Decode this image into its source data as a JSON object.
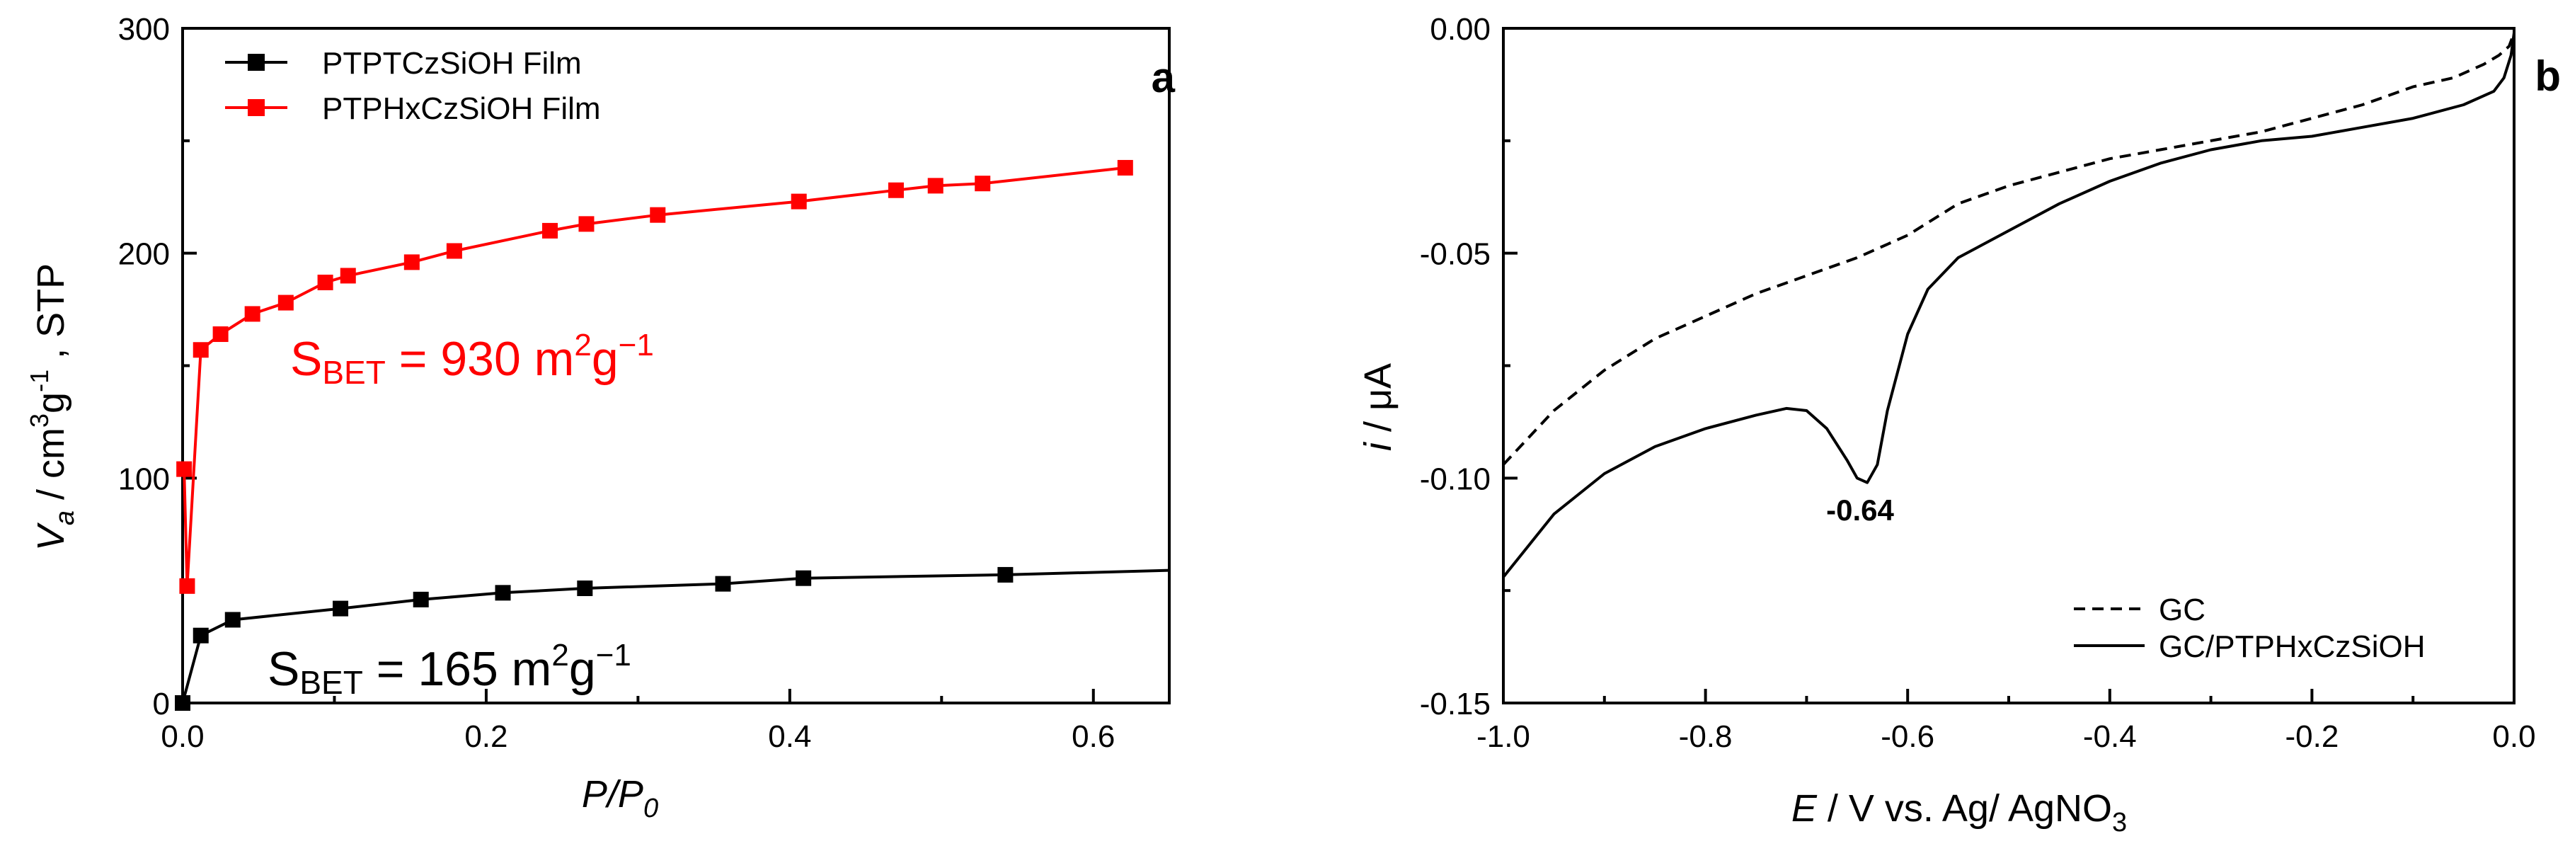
{
  "chart_data": [
    {
      "panel": "a",
      "type": "line",
      "xlabel_main": "P/P",
      "xlabel_sub": "0",
      "ylabel": {
        "main": "V",
        "sub": "a",
        "unit1": " / cm",
        "sup1": "3",
        "unit2": "g",
        "sup2": "-1",
        "unit3": " , STP"
      },
      "xlim": [
        0,
        0.65
      ],
      "ylim": [
        0,
        300
      ],
      "xticks": [
        0.0,
        0.2,
        0.4,
        0.6
      ],
      "xtick_labels": [
        "0.0",
        "0.2",
        "0.4",
        "0.6"
      ],
      "yticks": [
        0,
        100,
        200,
        300
      ],
      "ytick_labels": [
        "0",
        "100",
        "200",
        "300"
      ],
      "series": [
        {
          "name": "PTPTCzSiOH Film",
          "color": "#000000",
          "x": [
            0.0,
            0.012,
            0.033,
            0.104,
            0.157,
            0.211,
            0.265,
            0.356,
            0.409,
            0.542,
            0.65
          ],
          "y": [
            0,
            30,
            37,
            42,
            46,
            49,
            51,
            53,
            55.5,
            57,
            59
          ],
          "markers": [
            true,
            true,
            true,
            true,
            true,
            true,
            true,
            true,
            true,
            true,
            false
          ]
        },
        {
          "name": "PTPHxCzSiOH Film",
          "color": "#ff0000",
          "x": [
            0.001,
            0.003,
            0.012,
            0.025,
            0.046,
            0.068,
            0.094,
            0.109,
            0.151,
            0.179,
            0.242,
            0.266,
            0.313,
            0.406,
            0.47,
            0.496,
            0.527,
            0.621
          ],
          "y": [
            104,
            52,
            157,
            164,
            173,
            178,
            187,
            190,
            196,
            201,
            210,
            213,
            217,
            223,
            228,
            230,
            231,
            238
          ],
          "markers": [
            true,
            true,
            true,
            true,
            true,
            true,
            true,
            true,
            true,
            true,
            true,
            true,
            true,
            true,
            true,
            true,
            true,
            true
          ]
        }
      ],
      "annotations": [
        {
          "text_main": "S",
          "text_sub": "BET",
          "text_rest": " = 930 m",
          "sup1": "2",
          "rest2": "g",
          "sup2": "−1",
          "color": "#ff0000"
        },
        {
          "text_main": "S",
          "text_sub": "BET",
          "text_rest": " = 165 m",
          "sup1": "2",
          "rest2": "g",
          "sup2": "−1",
          "color": "#000000"
        }
      ]
    },
    {
      "panel": "b",
      "type": "line",
      "xlabel": {
        "main": "E",
        "rest": " / V vs. Ag/ AgNO",
        "sub": "3"
      },
      "ylabel": {
        "main": "i",
        "rest": " / μA"
      },
      "xlim": [
        -1.0,
        0.0
      ],
      "ylim": [
        -0.15,
        0.0
      ],
      "xticks": [
        -1.0,
        -0.8,
        -0.6,
        -0.4,
        -0.2,
        0.0
      ],
      "xtick_labels": [
        "-1.0",
        "-0.8",
        "-0.6",
        "-0.4",
        "-0.2",
        "0.0"
      ],
      "yticks": [
        0.0,
        -0.05,
        -0.1,
        -0.15
      ],
      "ytick_labels": [
        "0.00",
        "-0.05",
        "-0.10",
        "-0.15"
      ],
      "series": [
        {
          "name": "GC",
          "style": "dashed",
          "x": [
            -1.0,
            -0.95,
            -0.9,
            -0.85,
            -0.8,
            -0.75,
            -0.7,
            -0.65,
            -0.6,
            -0.55,
            -0.5,
            -0.45,
            -0.4,
            -0.35,
            -0.3,
            -0.25,
            -0.2,
            -0.15,
            -0.1,
            -0.06,
            -0.03,
            -0.015,
            -0.005,
            0.0
          ],
          "y": [
            -0.097,
            -0.085,
            -0.076,
            -0.069,
            -0.064,
            -0.059,
            -0.055,
            -0.051,
            -0.046,
            -0.039,
            -0.035,
            -0.032,
            -0.029,
            -0.027,
            -0.025,
            -0.023,
            -0.02,
            -0.017,
            -0.013,
            -0.011,
            -0.008,
            -0.006,
            -0.004,
            -0.001
          ]
        },
        {
          "name": "GC/PTPHxCzSiOH",
          "style": "solid",
          "x": [
            -1.0,
            -0.95,
            -0.9,
            -0.85,
            -0.8,
            -0.75,
            -0.72,
            -0.7,
            -0.68,
            -0.66,
            -0.65,
            -0.64,
            -0.63,
            -0.62,
            -0.6,
            -0.58,
            -0.55,
            -0.5,
            -0.45,
            -0.4,
            -0.35,
            -0.3,
            -0.25,
            -0.2,
            -0.15,
            -0.1,
            -0.05,
            -0.02,
            -0.01,
            -0.003,
            0.0
          ],
          "y": [
            -0.122,
            -0.108,
            -0.099,
            -0.093,
            -0.089,
            -0.086,
            -0.0845,
            -0.085,
            -0.089,
            -0.096,
            -0.1,
            -0.101,
            -0.097,
            -0.085,
            -0.068,
            -0.058,
            -0.051,
            -0.045,
            -0.039,
            -0.034,
            -0.03,
            -0.027,
            -0.025,
            -0.024,
            -0.022,
            -0.02,
            -0.017,
            -0.014,
            -0.011,
            -0.006,
            -0.001
          ]
        }
      ],
      "annotations": [
        {
          "text": "-0.64",
          "x": -0.64,
          "y": -0.101
        }
      ]
    }
  ]
}
